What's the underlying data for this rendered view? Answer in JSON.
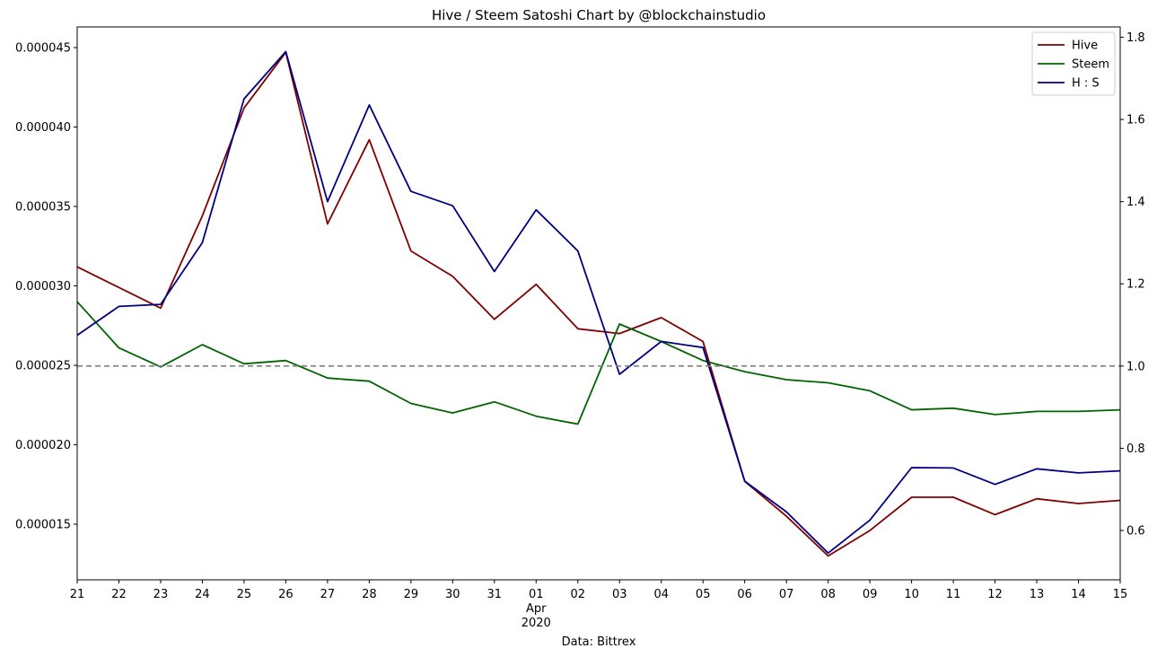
{
  "chart_data": {
    "type": "line",
    "title": "Hive / Steem Satoshi Chart by @blockchainstudio",
    "xlabel": "Data: Bittrex",
    "x_ticks": [
      "21",
      "22",
      "23",
      "24",
      "25",
      "26",
      "27",
      "28",
      "29",
      "30",
      "31",
      "01",
      "02",
      "03",
      "04",
      "05",
      "06",
      "07",
      "08",
      "09",
      "10",
      "11",
      "12",
      "13",
      "14",
      "15"
    ],
    "x_secondary": {
      "month": "Apr",
      "year": "2020"
    },
    "y_left": {
      "ylim": [
        1.15e-05,
        4.63e-05
      ],
      "ticks": [
        1.5e-05,
        2e-05,
        2.5e-05,
        3e-05,
        3.5e-05,
        4e-05,
        4.5e-05
      ],
      "tick_labels": [
        "0.000015",
        "0.000020",
        "0.000025",
        "0.000030",
        "0.000035",
        "0.000040",
        "0.000045"
      ]
    },
    "y_right": {
      "ylim": [
        0.48,
        1.825
      ],
      "ticks": [
        0.6,
        0.8,
        1.0,
        1.2,
        1.4,
        1.6,
        1.8
      ],
      "tick_labels": [
        "0.6",
        "0.8",
        "1.0",
        "1.2",
        "1.4",
        "1.6",
        "1.8"
      ]
    },
    "reference_line": {
      "axis": "right",
      "value": 1.0,
      "style": "dashed",
      "color": "#808080"
    },
    "legend_position": "top-right",
    "series": [
      {
        "name": "Hive",
        "axis": "left",
        "color": "#800000",
        "values": [
          3.12e-05,
          2.99e-05,
          2.86e-05,
          3.44e-05,
          4.12e-05,
          4.47e-05,
          3.39e-05,
          3.92e-05,
          3.22e-05,
          3.06e-05,
          2.79e-05,
          3.01e-05,
          2.73e-05,
          2.7e-05,
          2.8e-05,
          2.65e-05,
          1.77e-05,
          1.55e-05,
          1.3e-05,
          1.46e-05,
          1.67e-05,
          1.67e-05,
          1.56e-05,
          1.66e-05,
          1.63e-05,
          1.65e-05
        ]
      },
      {
        "name": "Steem",
        "axis": "left",
        "color": "#006400",
        "values": [
          2.9e-05,
          2.61e-05,
          2.49e-05,
          2.63e-05,
          2.51e-05,
          2.53e-05,
          2.42e-05,
          2.4e-05,
          2.26e-05,
          2.2e-05,
          2.27e-05,
          2.18e-05,
          2.13e-05,
          2.76e-05,
          2.65e-05,
          2.53e-05,
          2.46e-05,
          2.41e-05,
          2.39e-05,
          2.34e-05,
          2.22e-05,
          2.23e-05,
          2.19e-05,
          2.21e-05,
          2.21e-05,
          2.22e-05
        ]
      },
      {
        "name": "H : S",
        "axis": "right",
        "color": "#000080",
        "values": [
          1.075,
          1.145,
          1.15,
          1.3,
          1.65,
          1.765,
          1.4,
          1.635,
          1.425,
          1.39,
          1.23,
          1.38,
          1.28,
          0.98,
          1.06,
          1.045,
          0.72,
          0.645,
          0.545,
          0.625,
          0.753,
          0.752,
          0.712,
          0.75,
          0.74,
          0.745
        ]
      }
    ]
  }
}
